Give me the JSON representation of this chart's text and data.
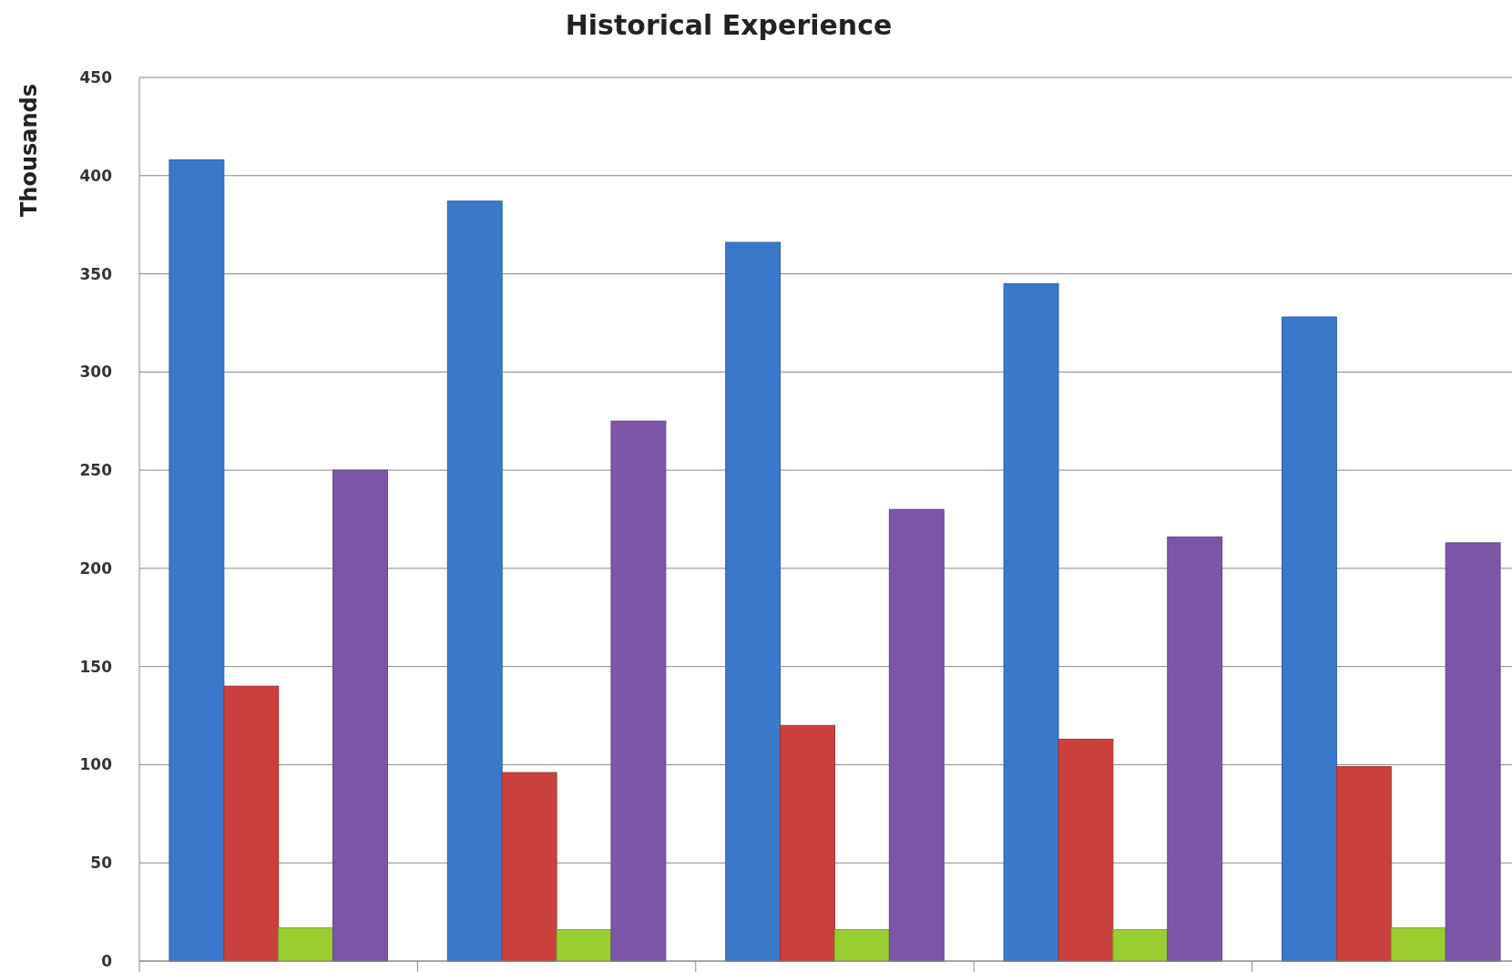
{
  "chart_data": {
    "type": "bar",
    "title": "Historical Experience",
    "ylabel": "Thousands",
    "categories": [
      null,
      null,
      null,
      null,
      null
    ],
    "series": [
      {
        "color": "#3a78c9",
        "values": [
          408,
          387,
          366,
          345,
          328
        ]
      },
      {
        "color": "#c9403c",
        "values": [
          140,
          96,
          120,
          113,
          99
        ]
      },
      {
        "color": "#9acd32",
        "values": [
          17,
          16,
          16,
          16,
          17
        ]
      },
      {
        "color": "#7d55a8",
        "values": [
          250,
          275,
          230,
          216,
          213
        ]
      }
    ],
    "ylim": [
      0,
      450
    ],
    "yticks": [
      0,
      50,
      100,
      150,
      200,
      250,
      300,
      350,
      400,
      450
    ],
    "grid": "y"
  }
}
